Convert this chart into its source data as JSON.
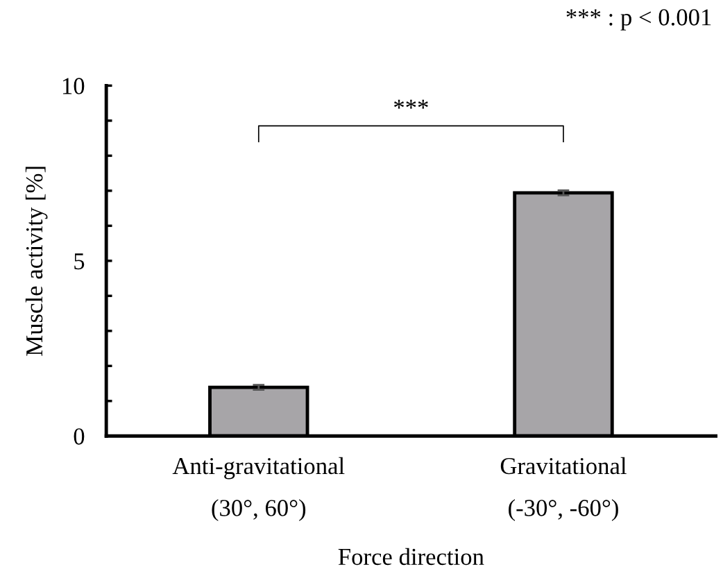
{
  "chart_data": {
    "type": "bar",
    "xlabel": "Force direction",
    "ylabel": "Muscle activity [%]",
    "categories": [
      "Anti-gravitational\n(30°, 60°)",
      "Gravitational\n(-30°, -60°)"
    ],
    "values": [
      1.39,
      6.94
    ],
    "errors": [
      0.07,
      0.07
    ],
    "color": "#a7a5a8",
    "ylim": [
      0,
      10
    ],
    "yticks": [
      0,
      {
        "value": 1,
        "label": null
      },
      {
        "value": 2,
        "label": null
      },
      {
        "value": 3,
        "label": null
      },
      {
        "value": 4,
        "label": null
      },
      5,
      {
        "value": 6,
        "label": null
      },
      {
        "value": 7,
        "label": null
      },
      {
        "value": 8,
        "label": null
      },
      {
        "value": 9,
        "label": null
      },
      10
    ],
    "grid": false,
    "legend": false,
    "annotations": [
      "***",
      "*** : p < 0.001"
    ]
  }
}
